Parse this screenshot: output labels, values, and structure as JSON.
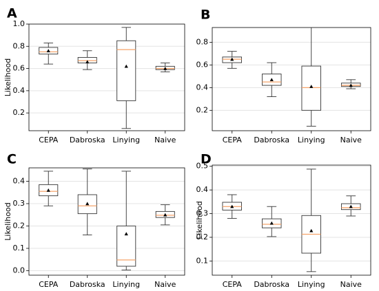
{
  "chart_data": [
    {
      "panel": "A",
      "type": "boxplot",
      "ylabel": "Likelihood",
      "categories": [
        "CEPA",
        "Dabroska",
        "Linying",
        "Naive"
      ],
      "yticks": [
        0.2,
        0.4,
        0.6,
        0.8,
        1.0
      ],
      "tick_labels": [
        "0.2",
        "0.4",
        "0.6",
        "0.8",
        "1.0"
      ],
      "ylim": [
        0.04,
        1.0
      ],
      "grid": true,
      "boxes": [
        {
          "whisker_low": 0.64,
          "q1": 0.73,
          "median": 0.75,
          "q3": 0.79,
          "whisker_high": 0.83,
          "mean": 0.76
        },
        {
          "whisker_low": 0.59,
          "q1": 0.65,
          "median": 0.67,
          "q3": 0.7,
          "whisker_high": 0.76,
          "mean": 0.66
        },
        {
          "whisker_low": 0.06,
          "q1": 0.31,
          "median": 0.77,
          "q3": 0.85,
          "whisker_high": 0.97,
          "mean": 0.62
        },
        {
          "whisker_low": 0.57,
          "q1": 0.59,
          "median": 0.6,
          "q3": 0.62,
          "whisker_high": 0.65,
          "mean": 0.6
        }
      ]
    },
    {
      "panel": "B",
      "type": "boxplot",
      "ylabel": "",
      "categories": [
        "CEPA",
        "Dabroska",
        "Linying",
        "Naive"
      ],
      "yticks": [
        0.2,
        0.4,
        0.6,
        0.8
      ],
      "tick_labels": [
        "0.2",
        "0.4",
        "0.6",
        "0.8"
      ],
      "ylim": [
        0.02,
        0.93
      ],
      "grid": true,
      "boxes": [
        {
          "whisker_low": 0.57,
          "q1": 0.62,
          "median": 0.65,
          "q3": 0.67,
          "whisker_high": 0.72,
          "mean": 0.65
        },
        {
          "whisker_low": 0.32,
          "q1": 0.42,
          "median": 0.45,
          "q3": 0.52,
          "whisker_high": 0.62,
          "mean": 0.47
        },
        {
          "whisker_low": 0.06,
          "q1": 0.2,
          "median": 0.4,
          "q3": 0.59,
          "whisker_high": 0.93,
          "mean": 0.41
        },
        {
          "whisker_low": 0.39,
          "q1": 0.41,
          "median": 0.42,
          "q3": 0.44,
          "whisker_high": 0.47,
          "mean": 0.42
        }
      ]
    },
    {
      "panel": "C",
      "type": "boxplot",
      "ylabel": "Likelihood",
      "categories": [
        "CEPA",
        "Dabroska",
        "Linying",
        "Naive"
      ],
      "yticks": [
        0.0,
        0.1,
        0.2,
        0.3,
        0.4
      ],
      "tick_labels": [
        "0.0",
        "0.1",
        "0.2",
        "0.3",
        "0.4"
      ],
      "ylim": [
        -0.02,
        0.46
      ],
      "grid": true,
      "boxes": [
        {
          "whisker_low": 0.29,
          "q1": 0.335,
          "median": 0.355,
          "q3": 0.385,
          "whisker_high": 0.445,
          "mean": 0.36
        },
        {
          "whisker_low": 0.16,
          "q1": 0.255,
          "median": 0.29,
          "q3": 0.34,
          "whisker_high": 0.455,
          "mean": 0.3
        },
        {
          "whisker_low": 0.003,
          "q1": 0.02,
          "median": 0.048,
          "q3": 0.2,
          "whisker_high": 0.445,
          "mean": 0.165
        },
        {
          "whisker_low": 0.205,
          "q1": 0.238,
          "median": 0.248,
          "q3": 0.265,
          "whisker_high": 0.295,
          "mean": 0.25
        }
      ]
    },
    {
      "panel": "D",
      "type": "boxplot",
      "ylabel": "Likelihood",
      "categories": [
        "CEPA",
        "Dabroska",
        "Linying",
        "Naive"
      ],
      "yticks": [
        0.1,
        0.2,
        0.3,
        0.4,
        0.5
      ],
      "tick_labels": [
        "0.1",
        "0.2",
        "0.3",
        "0.4",
        "0.5"
      ],
      "ylim": [
        0.04,
        0.505
      ],
      "grid": true,
      "boxes": [
        {
          "whisker_low": 0.28,
          "q1": 0.315,
          "median": 0.33,
          "q3": 0.348,
          "whisker_high": 0.38,
          "mean": 0.33
        },
        {
          "whisker_low": 0.203,
          "q1": 0.24,
          "median": 0.255,
          "q3": 0.278,
          "whisker_high": 0.33,
          "mean": 0.26
        },
        {
          "whisker_low": 0.055,
          "q1": 0.133,
          "median": 0.213,
          "q3": 0.292,
          "whisker_high": 0.488,
          "mean": 0.228
        },
        {
          "whisker_low": 0.29,
          "q1": 0.317,
          "median": 0.325,
          "q3": 0.342,
          "whisker_high": 0.375,
          "mean": 0.33
        }
      ]
    }
  ],
  "colors": {
    "median": "#f5a36a",
    "box": "#333333",
    "grid": "#e3e3e3",
    "mean": "#000000"
  }
}
